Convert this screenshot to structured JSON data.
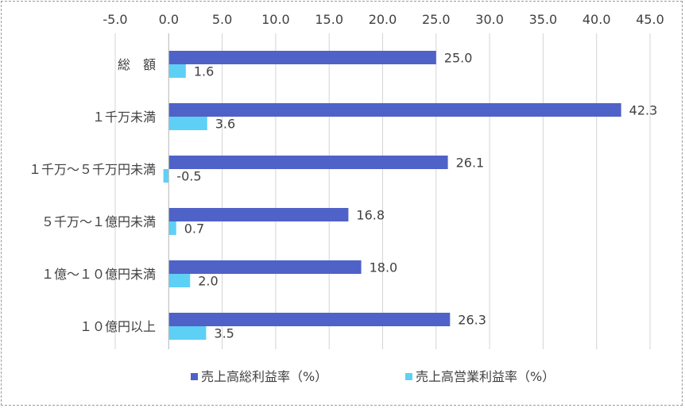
{
  "chart_data": {
    "type": "bar",
    "orientation": "horizontal",
    "categories": [
      "総　額",
      "１千万未満",
      "１千万～５千万円未満",
      "５千万～１億円未満",
      "１億～１０億円未満",
      "１０億円以上"
    ],
    "series": [
      {
        "name": "売上高総利益率（%）",
        "color": "#4e62c8",
        "values": [
          25.0,
          42.3,
          26.1,
          16.8,
          18.0,
          26.3
        ],
        "labels": [
          "25.0",
          "42.3",
          "26.1",
          "16.8",
          "18.0",
          "26.3"
        ]
      },
      {
        "name": "売上高営業利益率（%）",
        "color": "#5ed0f5",
        "values": [
          1.6,
          3.6,
          -0.5,
          0.7,
          2.0,
          3.5
        ],
        "labels": [
          "1.6",
          "3.6",
          "-0.5",
          "0.7",
          "2.0",
          "3.5"
        ]
      }
    ],
    "x_ticks": [
      "-5.0",
      "0.0",
      "5.0",
      "10.0",
      "15.0",
      "20.0",
      "25.0",
      "30.0",
      "35.0",
      "40.0",
      "45.0"
    ],
    "xlim": [
      -5,
      45
    ],
    "x_tick_step": 5,
    "axis_position": "top",
    "grid": true,
    "legend_position": "bottom",
    "title": "",
    "xlabel": "",
    "ylabel": ""
  }
}
